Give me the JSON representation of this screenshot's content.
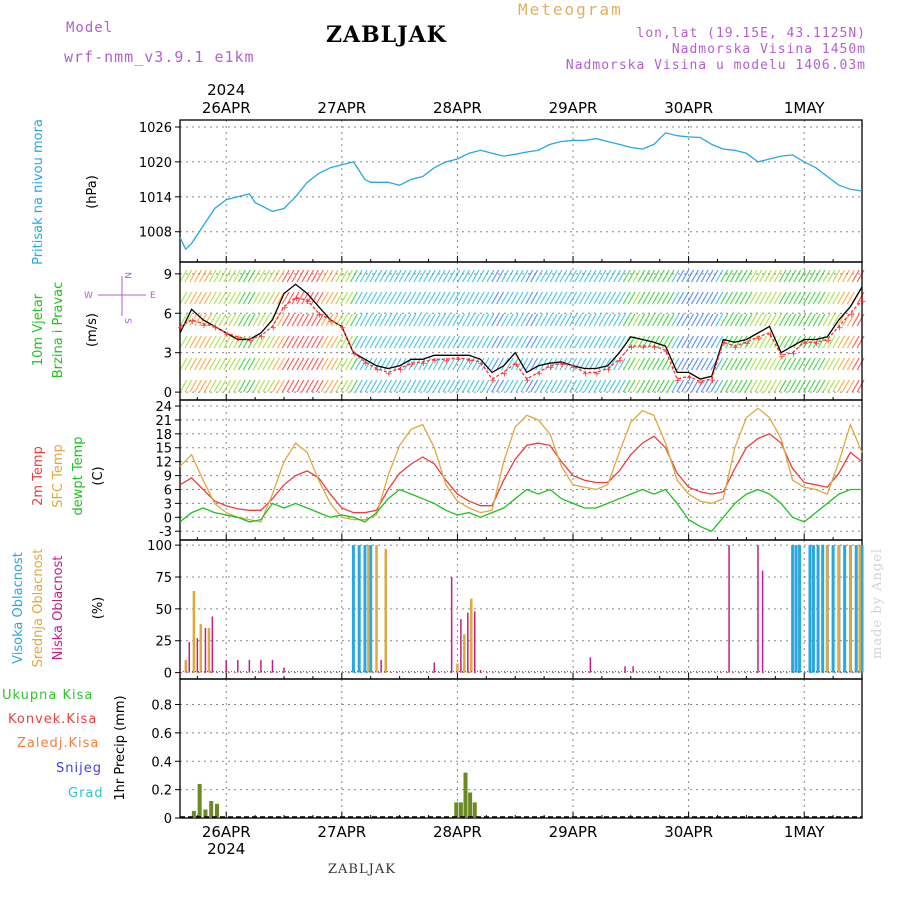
{
  "header": {
    "model_label": "Model",
    "model_name": "wrf-nmm_v3.9.1  e1km",
    "location": "ZABLJAK",
    "product": "Meteogram",
    "coords": "lon,lat (19.15E, 43.1125N)",
    "elevation": "Nadmorska Visina 1450m",
    "model_elevation": "Nadmorska Visina u modelu 1406.03m",
    "footer_location": "ZABLJAK",
    "watermark": "made by Angel"
  },
  "time_axis": {
    "year_label": "2024",
    "days": [
      "26APR",
      "27APR",
      "28APR",
      "29APR",
      "30APR",
      "1MAY"
    ],
    "day_values": [
      1,
      2,
      3,
      4,
      5,
      6
    ],
    "range": [
      0.6,
      6.5
    ]
  },
  "colors": {
    "pressure": "#29a8e0",
    "temp_2m": "#e84040",
    "sfc_temp": "#e0a840",
    "dewpoint": "#22c022",
    "high_cloud": "#29a8e0",
    "mid_cloud": "#e0a840",
    "low_cloud": "#c0208a",
    "total_precip": "#2ec42e",
    "conv_precip": "#e84040",
    "frozen_precip": "#f07f3c",
    "snow": "#4040e0",
    "graupel": "#2ec4c4",
    "precip_bar": "#6b8a24",
    "wind_speed": "#000000",
    "wind_gust": "#ff3030"
  },
  "chart_data": [
    {
      "type": "line",
      "panel": "pressure",
      "ylabel": "(hPa)",
      "side_label": "Pritisak na nivou mora",
      "yticks": [
        1008,
        1014,
        1020,
        1026
      ],
      "ylim": [
        1002.8,
        1027.2
      ],
      "series": [
        {
          "name": "Pritisak na nivou mora",
          "x": [
            0.6,
            0.65,
            0.7,
            0.8,
            0.9,
            1.0,
            1.1,
            1.2,
            1.25,
            1.3,
            1.4,
            1.5,
            1.55,
            1.6,
            1.7,
            1.8,
            1.9,
            2.0,
            2.1,
            2.2,
            2.25,
            2.3,
            2.4,
            2.5,
            2.6,
            2.7,
            2.8,
            2.9,
            3.0,
            3.1,
            3.2,
            3.3,
            3.4,
            3.5,
            3.6,
            3.7,
            3.8,
            3.9,
            4.0,
            4.1,
            4.2,
            4.3,
            4.4,
            4.5,
            4.6,
            4.7,
            4.8,
            4.9,
            5.0,
            5.1,
            5.2,
            5.3,
            5.4,
            5.5,
            5.6,
            5.7,
            5.8,
            5.9,
            6.0,
            6.1,
            6.2,
            6.3,
            6.4,
            6.5
          ],
          "values": [
            1007,
            1005,
            1006,
            1009,
            1012,
            1013.5,
            1014,
            1014.5,
            1013,
            1012.5,
            1011.5,
            1012,
            1013,
            1014,
            1016.5,
            1018,
            1019,
            1019.5,
            1020,
            1017,
            1016.5,
            1016.5,
            1016.5,
            1016,
            1017,
            1017.5,
            1019,
            1020,
            1020.5,
            1021.5,
            1022,
            1021.5,
            1021,
            1021.3,
            1021.7,
            1022,
            1023,
            1023.5,
            1023.7,
            1023.7,
            1024,
            1023.5,
            1023,
            1022.5,
            1022.2,
            1023,
            1025,
            1024.5,
            1024.3,
            1024.2,
            1023,
            1022.2,
            1022,
            1021.5,
            1020,
            1020.5,
            1021,
            1021.2,
            1020,
            1019,
            1017.5,
            1016,
            1015.3,
            1015
          ]
        }
      ]
    },
    {
      "type": "line",
      "panel": "wind",
      "ylabel": "(m/s)",
      "side_label": [
        "10m Vjetar",
        "Brzina i Pravac"
      ],
      "compass": [
        "N",
        "S",
        "W",
        "E"
      ],
      "yticks": [
        0,
        3,
        6,
        9
      ],
      "ylim": [
        -0.6,
        9.9
      ],
      "series": [
        {
          "name": "Brzina",
          "x": [
            0.6,
            0.7,
            0.8,
            0.9,
            1.0,
            1.1,
            1.2,
            1.3,
            1.4,
            1.5,
            1.6,
            1.7,
            1.8,
            1.9,
            2.0,
            2.1,
            2.2,
            2.3,
            2.4,
            2.5,
            2.6,
            2.7,
            2.8,
            2.9,
            3.0,
            3.1,
            3.2,
            3.3,
            3.4,
            3.5,
            3.6,
            3.7,
            3.8,
            3.9,
            4.0,
            4.1,
            4.2,
            4.3,
            4.4,
            4.5,
            4.6,
            4.7,
            4.8,
            4.9,
            5.0,
            5.1,
            5.2,
            5.3,
            5.4,
            5.5,
            5.6,
            5.7,
            5.8,
            5.9,
            6.0,
            6.1,
            6.2,
            6.3,
            6.4,
            6.5
          ],
          "values": [
            4.5,
            6.3,
            5.5,
            5.0,
            4.5,
            4.0,
            4.0,
            4.5,
            5.5,
            7.5,
            8.2,
            7.5,
            6.5,
            5.5,
            5.0,
            3.0,
            2.5,
            2.0,
            1.8,
            2.0,
            2.5,
            2.5,
            2.8,
            2.8,
            2.8,
            2.8,
            2.5,
            1.5,
            2.0,
            3.0,
            1.5,
            2.0,
            2.2,
            2.3,
            2.0,
            1.8,
            1.8,
            2.0,
            3.0,
            4.2,
            4.0,
            3.8,
            3.5,
            1.5,
            1.5,
            1.0,
            1.2,
            4.0,
            3.8,
            4.0,
            4.5,
            5.0,
            3.0,
            3.5,
            4.0,
            4.0,
            4.2,
            5.5,
            6.5,
            8.0
          ]
        },
        {
          "name": "Udar",
          "x": [
            0.6,
            0.7,
            0.8,
            0.9,
            1.0,
            1.1,
            1.2,
            1.3,
            1.4,
            1.5,
            1.6,
            1.7,
            1.8,
            1.9,
            2.0,
            2.1,
            2.2,
            2.3,
            2.4,
            2.5,
            2.6,
            2.7,
            2.8,
            2.9,
            3.0,
            3.1,
            3.2,
            3.3,
            3.4,
            3.5,
            3.6,
            3.7,
            3.8,
            3.9,
            4.0,
            4.1,
            4.2,
            4.3,
            4.4,
            4.5,
            4.6,
            4.7,
            4.8,
            4.9,
            5.0,
            5.1,
            5.2,
            5.3,
            5.4,
            5.5,
            5.6,
            5.7,
            5.8,
            5.9,
            6.0,
            6.1,
            6.2,
            6.3,
            6.4,
            6.5
          ],
          "values": [
            5.0,
            5.5,
            5.2,
            5.0,
            4.5,
            4.2,
            4.0,
            4.3,
            5.0,
            6.5,
            7.2,
            7.0,
            6.0,
            5.5,
            5.0,
            3.0,
            2.3,
            1.8,
            1.5,
            1.8,
            2.2,
            2.3,
            2.5,
            2.5,
            2.6,
            2.5,
            2.3,
            1.0,
            1.5,
            2.2,
            1.0,
            1.5,
            2.0,
            2.2,
            2.0,
            1.5,
            1.5,
            1.8,
            2.5,
            3.5,
            3.5,
            3.5,
            3.2,
            1.0,
            1.2,
            0.8,
            1.0,
            3.8,
            3.5,
            3.8,
            4.2,
            4.5,
            2.8,
            3.0,
            3.8,
            3.8,
            4.0,
            5.0,
            6.0,
            7.0
          ]
        }
      ]
    },
    {
      "type": "line",
      "panel": "temperature",
      "ylabel": "(C)",
      "side_label": [
        "2m Temp",
        "SFC Temp",
        "dewpt Temp"
      ],
      "yticks": [
        -3,
        0,
        3,
        6,
        9,
        12,
        15,
        18,
        21,
        24
      ],
      "ylim": [
        -4.9,
        25.3
      ],
      "series": [
        {
          "name": "2m Temp",
          "x": [
            0.6,
            0.7,
            0.8,
            0.9,
            1.0,
            1.1,
            1.2,
            1.3,
            1.4,
            1.5,
            1.6,
            1.7,
            1.8,
            1.9,
            2.0,
            2.1,
            2.2,
            2.3,
            2.4,
            2.5,
            2.6,
            2.7,
            2.8,
            2.9,
            3.0,
            3.1,
            3.2,
            3.3,
            3.4,
            3.5,
            3.6,
            3.7,
            3.8,
            3.9,
            4.0,
            4.1,
            4.2,
            4.3,
            4.4,
            4.5,
            4.6,
            4.7,
            4.8,
            4.9,
            5.0,
            5.1,
            5.2,
            5.3,
            5.4,
            5.5,
            5.6,
            5.7,
            5.8,
            5.9,
            6.0,
            6.1,
            6.2,
            6.3,
            6.4,
            6.5
          ],
          "values": [
            7,
            8.5,
            6,
            3.5,
            2.5,
            1.8,
            1.5,
            1.5,
            4,
            7,
            9,
            10,
            8.5,
            5,
            2,
            1,
            1,
            1.5,
            6,
            9.5,
            11.5,
            13,
            11.5,
            8,
            5,
            3.5,
            2.5,
            2.5,
            8,
            12.5,
            15.5,
            16,
            15.5,
            12,
            9,
            8,
            7.5,
            7.5,
            10,
            13.5,
            16,
            17.5,
            15,
            9.5,
            6.5,
            5.5,
            5,
            5.5,
            10.5,
            15,
            17,
            18,
            16,
            10.5,
            7.5,
            7,
            6.5,
            9.5,
            14,
            12
          ]
        },
        {
          "name": "SFC Temp",
          "x": [
            0.6,
            0.7,
            0.8,
            0.9,
            1.0,
            1.1,
            1.2,
            1.3,
            1.4,
            1.5,
            1.6,
            1.7,
            1.8,
            1.9,
            2.0,
            2.1,
            2.2,
            2.3,
            2.4,
            2.5,
            2.6,
            2.7,
            2.8,
            2.9,
            3.0,
            3.1,
            3.2,
            3.3,
            3.4,
            3.5,
            3.6,
            3.7,
            3.8,
            3.9,
            4.0,
            4.1,
            4.2,
            4.3,
            4.4,
            4.5,
            4.6,
            4.7,
            4.8,
            4.9,
            5.0,
            5.1,
            5.2,
            5.3,
            5.4,
            5.5,
            5.6,
            5.7,
            5.8,
            5.9,
            6.0,
            6.1,
            6.2,
            6.3,
            6.4,
            6.5
          ],
          "values": [
            11,
            13.5,
            8,
            3,
            1,
            0,
            -0.5,
            -1,
            5,
            12,
            16,
            14,
            8,
            3,
            0,
            -0.5,
            -0.5,
            0.5,
            9,
            15.5,
            19,
            20,
            15,
            7,
            3.5,
            2,
            1,
            1.5,
            12,
            19.5,
            22,
            21,
            18,
            11,
            7,
            6.5,
            6,
            7,
            14,
            20.5,
            23,
            22,
            16,
            8,
            5,
            3.5,
            3,
            4,
            15,
            21.5,
            23.5,
            21.5,
            17,
            8,
            6.5,
            6,
            5,
            12,
            20,
            14
          ]
        },
        {
          "name": "dewpt Temp",
          "x": [
            0.6,
            0.7,
            0.8,
            0.9,
            1.0,
            1.1,
            1.2,
            1.3,
            1.4,
            1.5,
            1.6,
            1.7,
            1.8,
            1.9,
            2.0,
            2.1,
            2.2,
            2.3,
            2.4,
            2.5,
            2.6,
            2.7,
            2.8,
            2.9,
            3.0,
            3.1,
            3.2,
            3.3,
            3.4,
            3.5,
            3.6,
            3.7,
            3.8,
            3.9,
            4.0,
            4.1,
            4.2,
            4.3,
            4.4,
            4.5,
            4.6,
            4.7,
            4.8,
            4.9,
            5.0,
            5.1,
            5.2,
            5.3,
            5.4,
            5.5,
            5.6,
            5.7,
            5.8,
            5.9,
            6.0,
            6.1,
            6.2,
            6.3,
            6.4,
            6.5
          ],
          "values": [
            -1,
            1,
            2,
            1,
            0.5,
            0,
            -1,
            -0.5,
            3,
            2,
            3,
            2,
            1,
            0,
            0.5,
            0,
            -1,
            1,
            4,
            6,
            5,
            4,
            3,
            1.5,
            0.5,
            1,
            0,
            1,
            2,
            4,
            6,
            5,
            6,
            4,
            3,
            2,
            2,
            3,
            4,
            5,
            6,
            5,
            6,
            3,
            -0.5,
            -2,
            -3,
            0,
            3,
            5,
            6,
            5,
            3,
            0,
            -1,
            1,
            3,
            5,
            6,
            6
          ]
        }
      ]
    },
    {
      "type": "bar",
      "panel": "cloud",
      "ylabel": "(%)",
      "side_label": [
        "Visoka Oblacnost",
        "Srednja Oblacnost",
        "Niska Oblacnost"
      ],
      "yticks": [
        0,
        25,
        50,
        75,
        100
      ],
      "ylim": [
        -5,
        104
      ],
      "series": [
        {
          "name": "Visoka Oblacnost",
          "x": [
            2.1,
            2.15,
            2.2,
            2.25,
            5.9,
            5.93,
            5.96,
            6.05,
            6.08,
            6.12,
            6.16,
            6.2,
            6.25,
            6.3,
            6.35,
            6.4,
            6.45,
            6.5
          ],
          "values": [
            100,
            100,
            100,
            100,
            100,
            100,
            100,
            100,
            100,
            100,
            100,
            100,
            100,
            100,
            100,
            100,
            100,
            100
          ]
        },
        {
          "name": "Srednja Oblacnost",
          "x": [
            0.65,
            0.72,
            0.78,
            0.85,
            2.23,
            2.3,
            2.38,
            3.0,
            3.06,
            3.12,
            6.2,
            6.3,
            6.4,
            6.48
          ],
          "values": [
            10,
            64,
            38,
            35,
            100,
            100,
            97,
            7,
            30,
            58,
            100,
            100,
            100,
            100
          ]
        },
        {
          "name": "Niska Oblacnost",
          "x": [
            0.68,
            0.75,
            0.82,
            0.88,
            1.0,
            1.1,
            1.2,
            1.3,
            1.4,
            1.5,
            2.34,
            2.8,
            2.95,
            3.03,
            3.09,
            3.15,
            3.2,
            4.15,
            4.45,
            4.52,
            5.35,
            5.6,
            5.64
          ],
          "values": [
            24,
            27,
            35,
            44,
            10,
            10,
            10,
            10,
            10,
            4,
            10,
            8,
            75,
            42,
            47,
            48,
            2,
            12,
            5,
            5,
            100,
            100,
            80
          ]
        }
      ]
    },
    {
      "type": "bar",
      "panel": "precipitation",
      "ylabel": "1hr Precip (mm)",
      "legend": [
        "Ukupna  Kisa",
        "Konvek.Kisa",
        "Zaledj.Kisa",
        "Snijeg",
        "Grad"
      ],
      "yticks": [
        0,
        0.2,
        0.4,
        0.6,
        0.8
      ],
      "ylim": [
        0,
        0.98
      ],
      "series": [
        {
          "name": "Ukupna  Kisa",
          "x": [
            0.72,
            0.77,
            0.82,
            0.87,
            0.92,
            2.99,
            3.03,
            3.07,
            3.11,
            3.15,
            4.0,
            5.0
          ],
          "values": [
            0.05,
            0.24,
            0.06,
            0.12,
            0.1,
            0.11,
            0.11,
            0.32,
            0.18,
            0.11,
            0.01,
            0.01
          ]
        }
      ]
    }
  ]
}
